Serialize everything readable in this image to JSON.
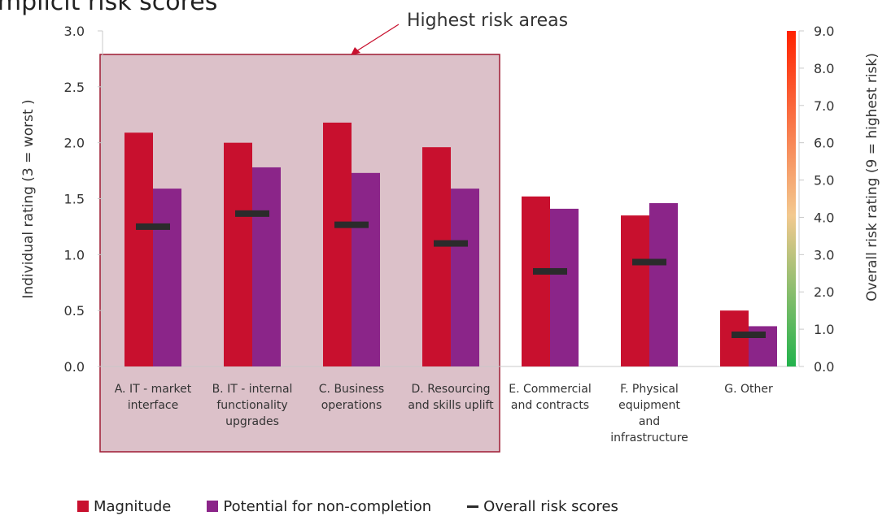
{
  "title": "Implicit risk scores",
  "colors": {
    "magnitude": "#c8102e",
    "potential": "#8b2589",
    "overall": "#2b2b2b",
    "highlight_fill": "#dcc1c9",
    "highlight_stroke": "#9e1b32"
  },
  "annotation": "Highest risk areas",
  "legend": {
    "magnitude": "Magnitude",
    "potential": "Potential for non-completion",
    "overall": "Overall risk scores"
  },
  "chart_data": {
    "type": "bar",
    "title": "Implicit risk scores",
    "categories": [
      [
        "A. IT - market",
        "interface"
      ],
      [
        "B. IT - internal",
        "functionality",
        "upgrades"
      ],
      [
        "C. Business",
        "operations"
      ],
      [
        "D. Resourcing",
        "and skills uplift"
      ],
      [
        "E. Commercial",
        "and contracts"
      ],
      [
        "F. Physical",
        "equipment",
        "and",
        "infrastructure"
      ],
      [
        "G. Other"
      ]
    ],
    "series": [
      {
        "name": "Magnitude",
        "axis": "left",
        "values": [
          2.09,
          2.0,
          2.18,
          1.96,
          1.52,
          1.35,
          0.5
        ]
      },
      {
        "name": "Potential for non-completion",
        "axis": "left",
        "values": [
          1.59,
          1.78,
          1.73,
          1.59,
          1.41,
          1.46,
          0.36
        ]
      },
      {
        "name": "Overall risk scores",
        "axis": "right",
        "marker": "dash",
        "values": [
          3.75,
          4.1,
          3.8,
          3.3,
          2.55,
          2.8,
          0.85
        ]
      }
    ],
    "ylabel": "Individual rating (3 = worst )",
    "y2label": "Overall risk rating (9 = highest risk)",
    "ylim": [
      0,
      3
    ],
    "yticks": [
      "0.0",
      "0.5",
      "1.0",
      "1.5",
      "2.0",
      "2.5",
      "3.0"
    ],
    "y2lim": [
      0,
      9
    ],
    "y2ticks": [
      "0.0",
      "1.0",
      "2.0",
      "3.0",
      "4.0",
      "5.0",
      "6.0",
      "7.0",
      "8.0",
      "9.0"
    ],
    "highlight": {
      "from_category": 0,
      "to_category": 3,
      "label": "Highest risk areas"
    },
    "legend_position": "bottom",
    "grid": false
  }
}
